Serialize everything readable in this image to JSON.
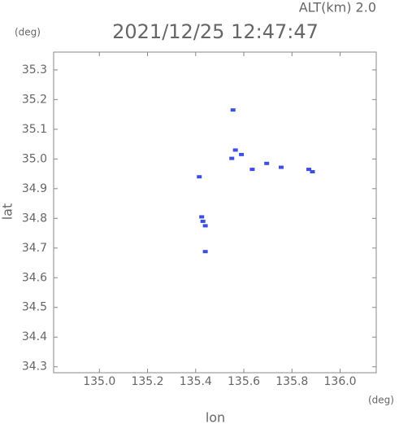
{
  "chart_data": {
    "type": "scatter",
    "annotation": "ALT(km) 2.0",
    "y_unit": "(deg)",
    "title": "2021/12/25 12:47:47",
    "ylabel": "lat",
    "x_unit": "(deg)",
    "xlabel": "lon",
    "x": [
      135.555,
      135.565,
      135.55,
      135.59,
      135.635,
      135.695,
      135.755,
      135.87,
      135.885,
      135.415,
      135.425,
      135.43,
      135.44,
      135.44
    ],
    "values": [
      35.165,
      35.03,
      35.002,
      35.015,
      34.965,
      34.985,
      34.972,
      34.965,
      34.957,
      34.94,
      34.805,
      34.79,
      34.775,
      34.688
    ],
    "color": "#3b4fe8",
    "xlim": [
      134.81,
      136.15
    ],
    "xticks": [
      {
        "value": 135.0,
        "label": "135.0"
      },
      135.2,
      135.4,
      135.6,
      135.8,
      {
        "value": 136.0,
        "label": "136.0"
      }
    ],
    "ylim": [
      34.28,
      35.36
    ],
    "yticks": [
      34.3,
      34.4,
      34.5,
      34.6,
      34.7,
      34.8,
      34.9,
      {
        "value": 35.0,
        "label": "35.0"
      },
      35.1,
      35.2,
      35.3
    ]
  }
}
